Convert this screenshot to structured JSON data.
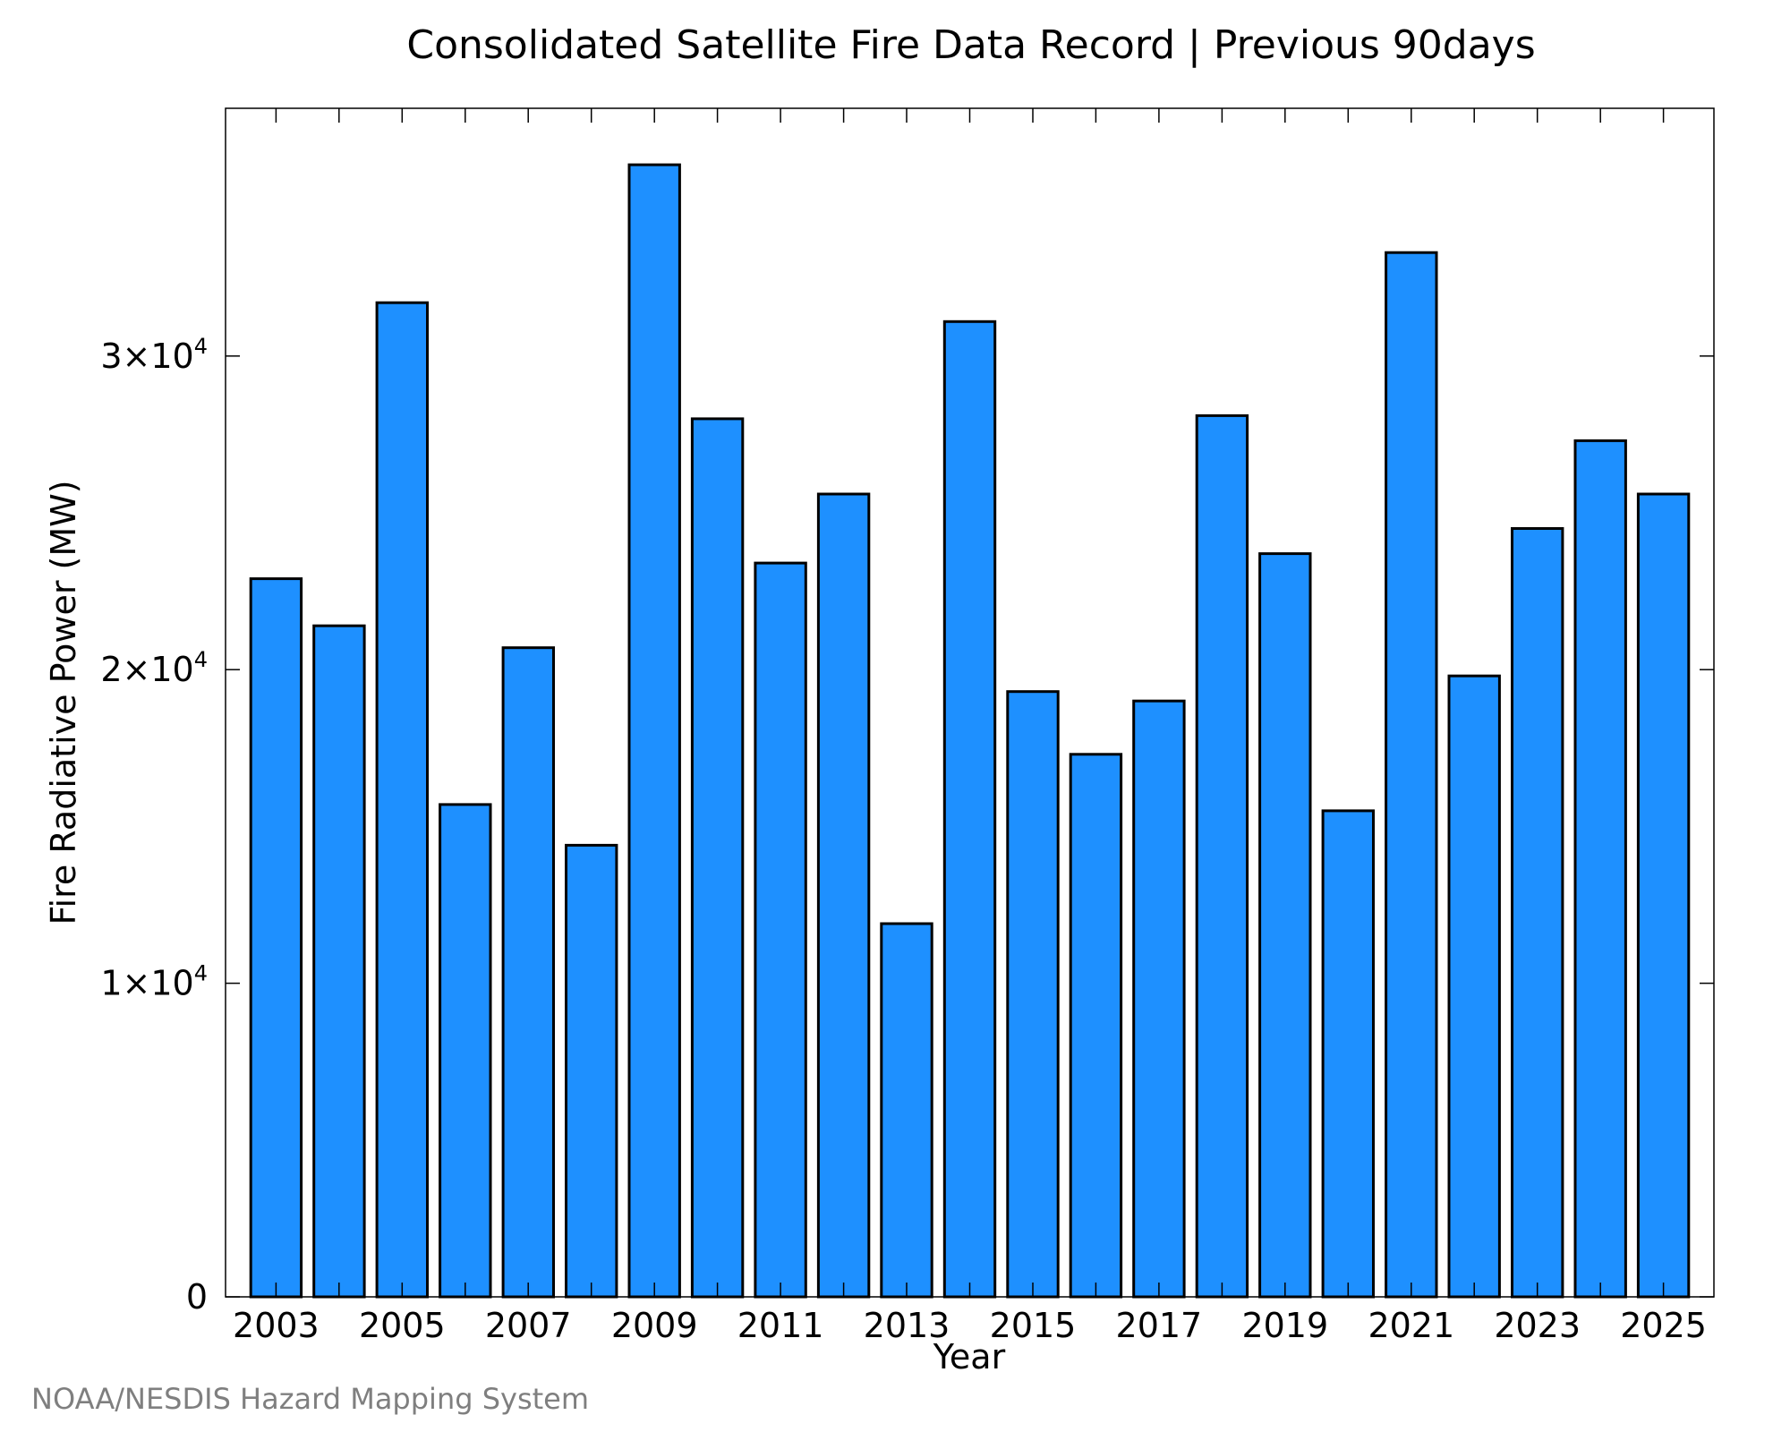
{
  "credit": "NOAA/NESDIS Hazard Mapping System",
  "colors": {
    "bar_fill": "#1e90ff",
    "bar_stroke": "#000000",
    "credit_text": "#7f7f7f"
  },
  "chart_data": {
    "type": "bar",
    "title": "Consolidated Satellite Fire Data Record | Previous 90days",
    "xlabel": "Year",
    "ylabel": "Fire Radiative Power (MW)",
    "ylim": [
      0,
      37900
    ],
    "xlim": [
      2002.2,
      2025.8
    ],
    "grid": false,
    "categories": [
      2003,
      2004,
      2005,
      2006,
      2007,
      2008,
      2009,
      2010,
      2011,
      2012,
      2013,
      2014,
      2015,
      2016,
      2017,
      2018,
      2019,
      2020,
      2021,
      2022,
      2023,
      2024,
      2025
    ],
    "values": [
      22900,
      21400,
      31700,
      15700,
      20700,
      14400,
      36100,
      28000,
      23400,
      25600,
      11900,
      31100,
      19300,
      17300,
      19000,
      28100,
      23700,
      15500,
      33300,
      19800,
      24500,
      27300,
      25600
    ],
    "x_ticks": [
      2003,
      2005,
      2007,
      2009,
      2011,
      2013,
      2015,
      2017,
      2019,
      2021,
      2023,
      2025
    ],
    "x_tick_labels": [
      "2003",
      "2005",
      "2007",
      "2009",
      "2011",
      "2013",
      "2015",
      "2017",
      "2019",
      "2021",
      "2023",
      "2025"
    ],
    "x_minor_ticks": [
      2004,
      2006,
      2008,
      2010,
      2012,
      2014,
      2016,
      2018,
      2020,
      2022,
      2024
    ],
    "y_ticks": [
      {
        "value": 0,
        "mantissa": "0",
        "exponent": ""
      },
      {
        "value": 10000,
        "mantissa": "1×10",
        "exponent": "4"
      },
      {
        "value": 20000,
        "mantissa": "2×10",
        "exponent": "4"
      },
      {
        "value": 30000,
        "mantissa": "3×10",
        "exponent": "4"
      }
    ],
    "bar_width": 0.8
  }
}
